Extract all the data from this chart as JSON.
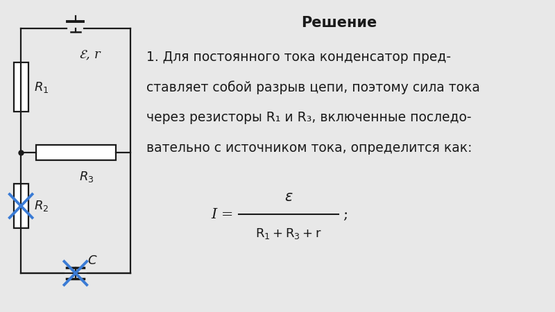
{
  "bg_color": "#e8e8e8",
  "title": "Решение",
  "title_fontsize": 15,
  "text_line1": "1. Для постоянного тока конденсатор пред-",
  "text_line2": "ставляет собой разрыв цепи, поэтому сила тока",
  "text_line3": "через резисторы R₁ и R₃, включенные последо-",
  "text_line4": "вательно с источником тока, определится как:",
  "circuit_color": "#1a1a1a",
  "cross_color": "#3a7bd5",
  "text_color": "#1a1a1a",
  "text_fontsize": 13.5
}
